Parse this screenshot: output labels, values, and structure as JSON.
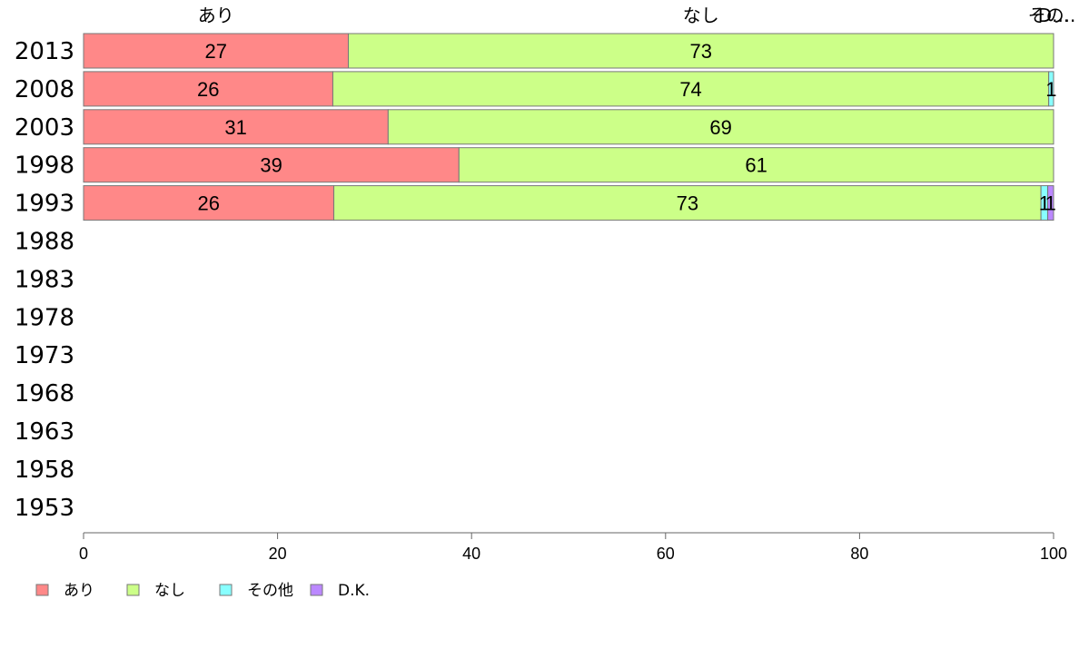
{
  "chart_data": {
    "type": "bar",
    "orientation": "horizontal",
    "stacked": true,
    "categories": [
      "2013",
      "2008",
      "2003",
      "1998",
      "1993",
      "1988",
      "1983",
      "1978",
      "1973",
      "1968",
      "1963",
      "1958",
      "1953"
    ],
    "series": [
      {
        "name": "あり",
        "color": "#ff8888",
        "values": [
          27.3,
          25.7,
          31.4,
          38.7,
          25.8,
          null,
          null,
          null,
          null,
          null,
          null,
          null,
          null
        ],
        "labels": [
          "27",
          "26",
          "31",
          "39",
          "26",
          "",
          "",
          "",
          "",
          "",
          "",
          "",
          ""
        ]
      },
      {
        "name": "なし",
        "color": "#ccff88",
        "values": [
          72.7,
          73.8,
          68.6,
          61.3,
          72.9,
          null,
          null,
          null,
          null,
          null,
          null,
          null,
          null
        ],
        "labels": [
          "73",
          "74",
          "69",
          "61",
          "73",
          "",
          "",
          "",
          "",
          "",
          "",
          "",
          ""
        ]
      },
      {
        "name": "その他",
        "color": "#88ffff",
        "values": [
          0,
          0.5,
          0,
          0,
          0.7,
          null,
          null,
          null,
          null,
          null,
          null,
          null,
          null
        ],
        "labels": [
          "",
          "1",
          "",
          "",
          "1",
          "",
          "",
          "",
          "",
          "",
          "",
          "",
          ""
        ]
      },
      {
        "name": "D.K.",
        "color": "#bb88ff",
        "values": [
          0,
          0,
          0,
          0,
          0.6,
          null,
          null,
          null,
          null,
          null,
          null,
          null,
          null
        ],
        "labels": [
          "",
          "",
          "",
          "",
          "1",
          "",
          "",
          "",
          "",
          "",
          "",
          "",
          ""
        ]
      }
    ],
    "top_labels": [
      "あり",
      "なし",
      "その..",
      "D..."
    ],
    "xlim": [
      0,
      100
    ],
    "xticks": [
      "0",
      "20",
      "40",
      "60",
      "80",
      "100"
    ],
    "legend_position": "bottom-left",
    "grid": false
  }
}
